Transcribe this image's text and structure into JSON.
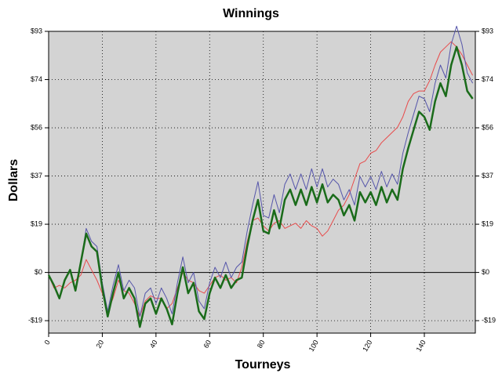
{
  "chart_data": {
    "type": "line",
    "title": "Winnings",
    "x_label": "Tourneys",
    "y_label": "Dollars",
    "x": [
      0,
      2,
      4,
      6,
      8,
      10,
      12,
      14,
      16,
      18,
      20,
      22,
      24,
      26,
      28,
      30,
      32,
      34,
      36,
      38,
      40,
      42,
      44,
      46,
      48,
      50,
      52,
      54,
      56,
      58,
      60,
      62,
      64,
      66,
      68,
      70,
      72,
      74,
      76,
      78,
      80,
      82,
      84,
      86,
      88,
      90,
      92,
      94,
      96,
      98,
      100,
      102,
      104,
      106,
      108,
      110,
      112,
      114,
      116,
      118,
      120,
      122,
      124,
      126,
      128,
      130,
      132,
      134,
      136,
      138,
      140,
      142,
      144,
      146,
      148,
      150,
      152,
      154,
      156,
      158
    ],
    "series": [
      {
        "color": "#e84a4a",
        "width": 1,
        "values": [
          -1,
          -6,
          -5,
          -6,
          -4,
          -3,
          -1,
          5,
          1,
          -3,
          -8,
          -15,
          -10,
          -3,
          -7,
          -8,
          -12,
          -17,
          -11,
          -9,
          -10,
          -10,
          -14,
          -12,
          -6,
          0,
          -3,
          -4,
          -7,
          -8,
          -5,
          -2,
          -1,
          -3,
          -2,
          -4,
          2,
          12,
          20,
          21,
          18,
          16,
          19,
          20,
          17,
          18,
          19,
          17,
          20,
          18,
          17,
          14,
          16,
          20,
          24,
          26,
          30,
          36,
          42,
          43,
          46,
          47,
          50,
          52,
          54,
          56,
          60,
          66,
          69,
          70,
          70,
          74,
          80,
          85,
          87,
          89,
          87,
          84,
          80,
          76
        ]
      },
      {
        "color": "#5555aa",
        "width": 1,
        "values": [
          -1,
          -5,
          -10,
          -3,
          1,
          -7,
          4,
          17,
          12,
          10,
          -4,
          -15,
          -5,
          3,
          -7,
          -3,
          -6,
          -17,
          -8,
          -6,
          -12,
          -6,
          -10,
          -16,
          -4,
          6,
          -4,
          0,
          -11,
          -14,
          -4,
          2,
          -2,
          4,
          -2,
          2,
          4,
          16,
          26,
          35,
          22,
          21,
          30,
          23,
          34,
          38,
          32,
          38,
          32,
          40,
          33,
          40,
          33,
          36,
          34,
          28,
          32,
          26,
          37,
          33,
          37,
          32,
          39,
          33,
          38,
          34,
          46,
          54,
          61,
          68,
          67,
          62,
          73,
          80,
          75,
          88,
          95,
          88,
          77,
          73
        ]
      },
      {
        "color": "#1a6b1a",
        "width": 2.5,
        "values": [
          -1,
          -5,
          -10,
          -3,
          1,
          -7,
          4,
          15,
          10,
          8,
          -6,
          -17,
          -8,
          0,
          -10,
          -6,
          -10,
          -21,
          -12,
          -10,
          -16,
          -10,
          -14,
          -20,
          -8,
          2,
          -8,
          -4,
          -15,
          -18,
          -8,
          -2,
          -6,
          -1,
          -6,
          -3,
          -2,
          10,
          20,
          28,
          16,
          15,
          24,
          17,
          28,
          32,
          26,
          32,
          26,
          33,
          27,
          34,
          27,
          30,
          28,
          22,
          26,
          20,
          31,
          27,
          31,
          26,
          33,
          27,
          32,
          28,
          40,
          48,
          55,
          62,
          60,
          55,
          66,
          73,
          68,
          80,
          87,
          80,
          70,
          67
        ]
      }
    ],
    "xlim": [
      0,
      159
    ],
    "ylim": [
      -23.4,
      93
    ],
    "xticks": [
      0,
      20,
      40,
      60,
      80,
      100,
      120,
      140
    ],
    "yticks": [
      {
        "value": -18.6,
        "label": "-$19"
      },
      {
        "value": 0,
        "label": "$0"
      },
      {
        "value": 18.6,
        "label": "$19"
      },
      {
        "value": 37.2,
        "label": "$37"
      },
      {
        "value": 55.8,
        "label": "$56"
      },
      {
        "value": 74.4,
        "label": "$74"
      },
      {
        "value": 93,
        "label": "$93"
      }
    ],
    "grid": true
  }
}
